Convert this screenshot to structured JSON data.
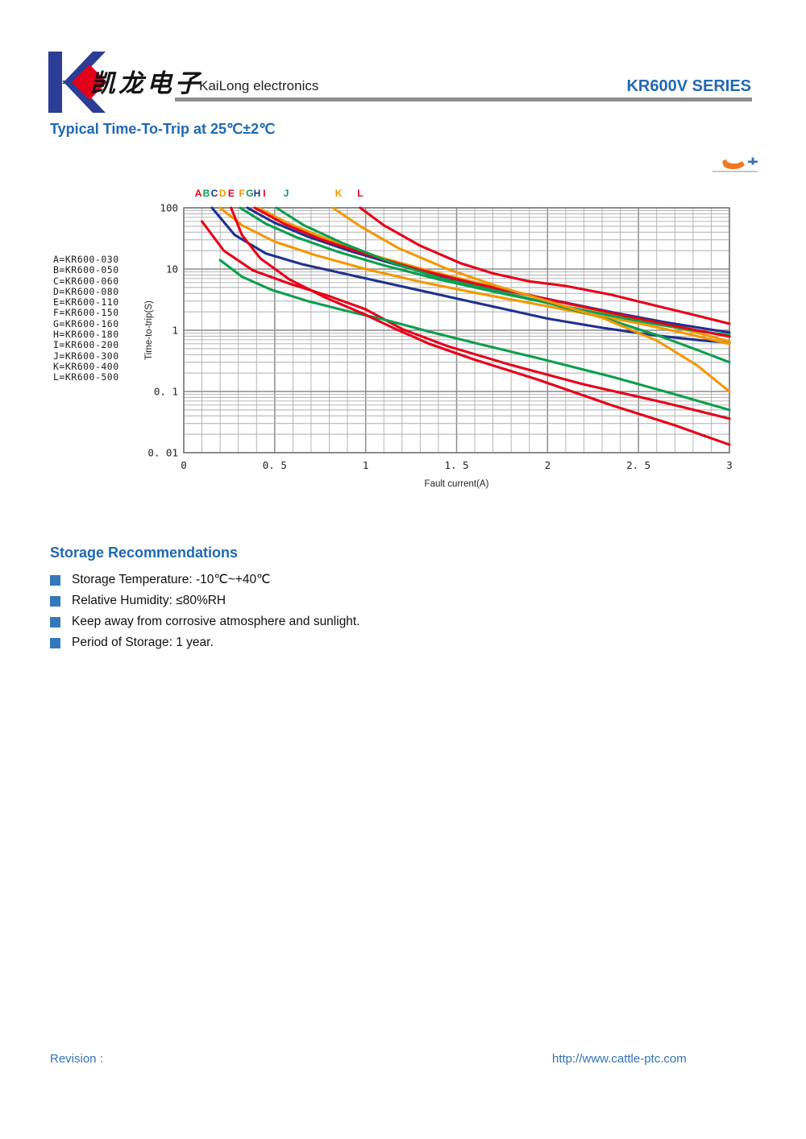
{
  "header": {
    "logo_text_cn": "凯龙电子",
    "logo_text_en": "KaiLong electronics",
    "series_label": "KR600V SERIES",
    "brand_blue": "#2268b2",
    "logo_blue": "#2b3d96",
    "logo_red": "#e3001b",
    "rule_gray": "#8f8f8f"
  },
  "title": "Typical Time-To-Trip at 25℃±2℃",
  "chart_data": {
    "type": "line",
    "title": "Typical Time-To-Trip at 25℃±2℃",
    "xlabel": "Fault current(A)",
    "ylabel": "Time-to-trip(S)",
    "xlim": [
      0,
      3
    ],
    "ylim": [
      0.01,
      100
    ],
    "y_scale": "log",
    "grid": "on (minor x every 0.1, log minor y 2-9 per decade)",
    "legend_position": "left of plot",
    "watermark_icon": "orange-swoosh-plus-icon",
    "x_ticks": [
      {
        "v": 0,
        "label": "0"
      },
      {
        "v": 0.5,
        "label": "0. 5"
      },
      {
        "v": 1,
        "label": "1"
      },
      {
        "v": 1.5,
        "label": "1. 5"
      },
      {
        "v": 2,
        "label": "2"
      },
      {
        "v": 2.5,
        "label": "2. 5"
      },
      {
        "v": 3,
        "label": "3"
      }
    ],
    "y_ticks": [
      {
        "v": 100,
        "label": "100"
      },
      {
        "v": 10,
        "label": "10"
      },
      {
        "v": 1,
        "label": "1"
      },
      {
        "v": 0.1,
        "label": "0. 1"
      },
      {
        "v": 0.01,
        "label": "0. 01"
      }
    ],
    "colors": {
      "red": "#e60019",
      "green": "#0d9e4e",
      "navy": "#20308e",
      "orange": "#f39800"
    },
    "top_labels": [
      {
        "letter": "A",
        "x": 0.08,
        "color": "red"
      },
      {
        "letter": "B",
        "x": 0.124,
        "color": "green"
      },
      {
        "letter": "C",
        "x": 0.168,
        "color": "navy"
      },
      {
        "letter": "D",
        "x": 0.213,
        "color": "orange"
      },
      {
        "letter": "E",
        "x": 0.261,
        "color": "red"
      },
      {
        "letter": "F",
        "x": 0.319,
        "color": "orange"
      },
      {
        "letter": "G",
        "x": 0.363,
        "color": "green"
      },
      {
        "letter": "H",
        "x": 0.403,
        "color": "navy"
      },
      {
        "letter": "I",
        "x": 0.443,
        "color": "red"
      },
      {
        "letter": "J",
        "x": 0.563,
        "color": "green"
      },
      {
        "letter": "K",
        "x": 0.851,
        "color": "orange"
      },
      {
        "letter": "L",
        "x": 0.97,
        "color": "red"
      }
    ],
    "legend": [
      {
        "letter": "A",
        "part": "KR600-030"
      },
      {
        "letter": "B",
        "part": "KR600-050"
      },
      {
        "letter": "C",
        "part": "KR600-060"
      },
      {
        "letter": "D",
        "part": "KR600-080"
      },
      {
        "letter": "E",
        "part": "KR600-110"
      },
      {
        "letter": "F",
        "part": "KR600-150"
      },
      {
        "letter": "G",
        "part": "KR600-160"
      },
      {
        "letter": "H",
        "part": "KR600-180"
      },
      {
        "letter": "I",
        "part": "KR600-200"
      },
      {
        "letter": "J",
        "part": "KR600-300"
      },
      {
        "letter": "K",
        "part": "KR600-400"
      },
      {
        "letter": "L",
        "part": "KR600-500"
      }
    ],
    "series": [
      {
        "name": "A",
        "part": "KR600-030",
        "color": "red",
        "points": [
          [
            0.1,
            60
          ],
          [
            0.22,
            20
          ],
          [
            0.38,
            9.5
          ],
          [
            0.58,
            5.8
          ],
          [
            0.8,
            3.6
          ],
          [
            1.0,
            2.2
          ],
          [
            1.2,
            1.05
          ],
          [
            1.45,
            0.55
          ],
          [
            1.8,
            0.27
          ],
          [
            2.2,
            0.13
          ],
          [
            2.65,
            0.065
          ],
          [
            3.0,
            0.036
          ]
        ]
      },
      {
        "name": "B",
        "part": "KR600-050",
        "color": "green",
        "points": [
          [
            0.2,
            14
          ],
          [
            0.32,
            7.5
          ],
          [
            0.48,
            4.6
          ],
          [
            0.68,
            3.0
          ],
          [
            0.9,
            2.05
          ],
          [
            1.1,
            1.5
          ],
          [
            1.35,
            0.95
          ],
          [
            1.6,
            0.62
          ],
          [
            1.95,
            0.35
          ],
          [
            2.35,
            0.175
          ],
          [
            2.7,
            0.09
          ],
          [
            3.0,
            0.05
          ]
        ]
      },
      {
        "name": "C",
        "part": "KR600-060",
        "color": "navy",
        "points": [
          [
            0.155,
            100
          ],
          [
            0.28,
            36
          ],
          [
            0.45,
            18
          ],
          [
            0.65,
            12
          ],
          [
            0.9,
            8.2
          ],
          [
            1.2,
            5.2
          ],
          [
            1.5,
            3.3
          ],
          [
            1.8,
            2.1
          ],
          [
            2.0,
            1.55
          ],
          [
            2.3,
            1.1
          ],
          [
            2.6,
            0.82
          ],
          [
            2.85,
            0.68
          ],
          [
            3.0,
            0.63
          ]
        ]
      },
      {
        "name": "D",
        "part": "KR600-080",
        "color": "orange",
        "points": [
          [
            0.2,
            100
          ],
          [
            0.32,
            52
          ],
          [
            0.5,
            28
          ],
          [
            0.72,
            17
          ],
          [
            1.0,
            10
          ],
          [
            1.3,
            6.2
          ],
          [
            1.6,
            4.1
          ],
          [
            1.9,
            2.8
          ],
          [
            2.2,
            1.9
          ],
          [
            2.5,
            1.3
          ],
          [
            2.75,
            0.9
          ],
          [
            3.0,
            0.6
          ]
        ]
      },
      {
        "name": "E",
        "part": "KR600-110",
        "color": "red",
        "points": [
          [
            0.26,
            100
          ],
          [
            0.32,
            36
          ],
          [
            0.42,
            15
          ],
          [
            0.58,
            6.8
          ],
          [
            0.78,
            3.4
          ],
          [
            0.98,
            1.9
          ],
          [
            1.15,
            1.1
          ],
          [
            1.35,
            0.6
          ],
          [
            1.6,
            0.33
          ],
          [
            1.95,
            0.155
          ],
          [
            2.35,
            0.06
          ],
          [
            2.7,
            0.028
          ],
          [
            3.0,
            0.0135
          ]
        ]
      },
      {
        "name": "F",
        "part": "KR600-150",
        "color": "orange",
        "points": [
          [
            0.41,
            100
          ],
          [
            0.58,
            55
          ],
          [
            0.8,
            30
          ],
          [
            1.05,
            16.5
          ],
          [
            1.35,
            9.3
          ],
          [
            1.65,
            5.6
          ],
          [
            1.95,
            3.5
          ],
          [
            2.25,
            2.2
          ],
          [
            2.55,
            1.4
          ],
          [
            2.8,
            0.95
          ],
          [
            3.0,
            0.66
          ]
        ]
      },
      {
        "name": "G",
        "part": "KR600-160",
        "color": "green",
        "points": [
          [
            0.31,
            100
          ],
          [
            0.45,
            55
          ],
          [
            0.62,
            33
          ],
          [
            0.85,
            19
          ],
          [
            1.1,
            11.5
          ],
          [
            1.4,
            6.8
          ],
          [
            1.7,
            4.3
          ],
          [
            2.0,
            2.8
          ],
          [
            2.3,
            1.85
          ],
          [
            2.6,
            1.25
          ],
          [
            2.8,
            1.0
          ],
          [
            3.0,
            0.83
          ]
        ]
      },
      {
        "name": "H",
        "part": "KR600-180",
        "color": "navy",
        "points": [
          [
            0.35,
            100
          ],
          [
            0.5,
            57
          ],
          [
            0.68,
            34
          ],
          [
            0.92,
            19.5
          ],
          [
            1.18,
            11.5
          ],
          [
            1.48,
            6.9
          ],
          [
            1.78,
            4.4
          ],
          [
            2.08,
            2.9
          ],
          [
            2.38,
            1.9
          ],
          [
            2.65,
            1.35
          ],
          [
            3.0,
            0.92
          ]
        ]
      },
      {
        "name": "I",
        "part": "KR600-200",
        "color": "red",
        "points": [
          [
            0.39,
            100
          ],
          [
            0.55,
            55
          ],
          [
            0.75,
            31
          ],
          [
            1.0,
            17.5
          ],
          [
            1.28,
            10
          ],
          [
            1.58,
            6.0
          ],
          [
            1.9,
            3.7
          ],
          [
            2.2,
            2.4
          ],
          [
            2.5,
            1.55
          ],
          [
            2.75,
            1.1
          ],
          [
            3.0,
            0.79
          ]
        ]
      },
      {
        "name": "J",
        "part": "KR600-300",
        "color": "green",
        "points": [
          [
            0.51,
            100
          ],
          [
            0.66,
            52
          ],
          [
            0.88,
            26
          ],
          [
            1.15,
            12.5
          ],
          [
            1.42,
            7.0
          ],
          [
            1.72,
            4.4
          ],
          [
            2.02,
            2.7
          ],
          [
            2.32,
            1.55
          ],
          [
            2.62,
            0.8
          ],
          [
            2.82,
            0.48
          ],
          [
            3.0,
            0.3
          ]
        ]
      },
      {
        "name": "K",
        "part": "KR600-400",
        "color": "orange",
        "points": [
          [
            0.82,
            100
          ],
          [
            0.97,
            50
          ],
          [
            1.18,
            22
          ],
          [
            1.45,
            10
          ],
          [
            1.72,
            5.3
          ],
          [
            2.0,
            3.0
          ],
          [
            2.3,
            1.6
          ],
          [
            2.6,
            0.68
          ],
          [
            2.82,
            0.27
          ],
          [
            3.0,
            0.1
          ]
        ]
      },
      {
        "name": "L",
        "part": "KR600-500",
        "color": "red",
        "points": [
          [
            0.97,
            100
          ],
          [
            1.1,
            52
          ],
          [
            1.3,
            24
          ],
          [
            1.52,
            12.5
          ],
          [
            1.7,
            8.5
          ],
          [
            1.9,
            6.3
          ],
          [
            2.1,
            5.3
          ],
          [
            2.35,
            3.8
          ],
          [
            2.6,
            2.5
          ],
          [
            2.8,
            1.8
          ],
          [
            3.0,
            1.28
          ]
        ]
      }
    ]
  },
  "storage": {
    "heading": "Storage Recommendations",
    "items": [
      "Storage Temperature: -10℃~+40℃",
      "Relative Humidity: ≤80%RH",
      "Keep away from corrosive atmosphere and sunlight.",
      "Period of Storage: 1 year."
    ]
  },
  "footer": {
    "revision_label": "Revision :",
    "website": "http://www.cattle-ptc.com"
  }
}
